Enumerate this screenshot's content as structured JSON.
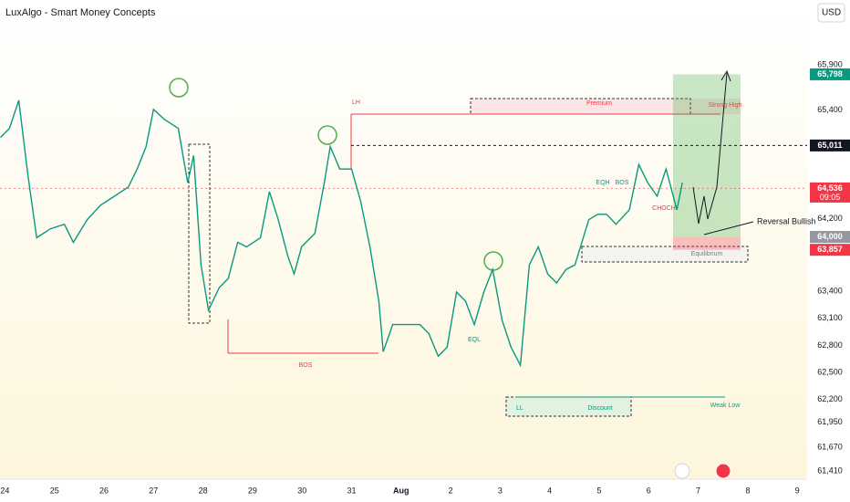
{
  "header": {
    "title": "LuxAlgo - Smart Money Concepts",
    "currency": "USD"
  },
  "chart_data": {
    "type": "line",
    "x": [
      23.91,
      24.09,
      24.28,
      24.46,
      24.64,
      24.92,
      25.2,
      25.38,
      25.66,
      25.93,
      26.21,
      26.49,
      26.67,
      26.85,
      27.0,
      27.22,
      27.5,
      27.69,
      27.81,
      27.96,
      28.11,
      28.33,
      28.51,
      28.7,
      28.88,
      29.16,
      29.34,
      29.52,
      29.71,
      29.84,
      29.99,
      30.26,
      30.45,
      30.57,
      30.76,
      31.0,
      31.18,
      31.37,
      31.55,
      31.64,
      31.83,
      32.1,
      32.38,
      32.56,
      32.75,
      32.93,
      33.12,
      33.3,
      33.48,
      33.67,
      33.85,
      34.04,
      34.22,
      34.41,
      34.59,
      34.77,
      34.96,
      35.14,
      35.33,
      35.51,
      35.79,
      35.97,
      36.15,
      36.34,
      36.61,
      36.8,
      36.98,
      37.17,
      37.35,
      37.57,
      37.68
    ],
    "values": [
      65100,
      65200,
      65510,
      64700,
      63990,
      64090,
      64140,
      63940,
      64190,
      64350,
      64450,
      64550,
      64750,
      65000,
      65410,
      65300,
      65200,
      64600,
      64900,
      63690,
      63190,
      63440,
      63540,
      63940,
      63890,
      63990,
      64500,
      64190,
      63790,
      63590,
      63890,
      64040,
      64600,
      65000,
      64750,
      64750,
      64400,
      63890,
      63290,
      62730,
      63030,
      63030,
      63030,
      62930,
      62680,
      62780,
      63390,
      63290,
      63030,
      63390,
      63640,
      63080,
      62780,
      62580,
      63690,
      63890,
      63590,
      63490,
      63640,
      63690,
      64190,
      64250,
      64250,
      64140,
      64300,
      64800,
      64600,
      64450,
      64750,
      64300,
      64600
    ],
    "color": "#089981",
    "xlim": [
      23.9,
      40.2
    ],
    "ylim": [
      61320,
      66620
    ],
    "xticks": [
      24,
      25,
      26,
      27,
      28,
      29,
      30,
      31,
      {
        "value": 32,
        "label": "Aug"
      },
      {
        "value": 33,
        "label": "2"
      },
      {
        "value": 34,
        "label": "3"
      },
      {
        "value": 35,
        "label": "4"
      },
      {
        "value": 36,
        "label": "5"
      },
      {
        "value": 37,
        "label": "6"
      },
      {
        "value": 38,
        "label": "7"
      },
      {
        "value": 39,
        "label": "8"
      },
      {
        "value": 40,
        "label": "9"
      }
    ],
    "yticks": [
      {
        "value": 65900,
        "label": "65,900"
      },
      {
        "value": 65400,
        "label": "65,400"
      },
      {
        "value": 64200,
        "label": "64,200"
      },
      {
        "value": 63400,
        "label": "63,400"
      },
      {
        "value": 63100,
        "label": "63,100"
      },
      {
        "value": 62800,
        "label": "62,800"
      },
      {
        "value": 62500,
        "label": "62,500"
      },
      {
        "value": 62200,
        "label": "62,200"
      },
      {
        "value": 61950,
        "label": "61,950"
      },
      {
        "value": 61670,
        "label": "61,670"
      },
      {
        "value": 61410,
        "label": "61,410"
      }
    ],
    "price_labels": [
      {
        "value": 65798,
        "label": "65,798",
        "color": "#089981"
      },
      {
        "value": 65011,
        "label": "65,011",
        "color": "#131722"
      },
      {
        "value": 64536,
        "label": "64,536",
        "countdown": "09:05",
        "color": "#f23645"
      },
      {
        "value": 64000,
        "label": "64,000",
        "color": "#9598a1"
      },
      {
        "value": 63857,
        "label": "63,857",
        "color": "#f23645"
      }
    ],
    "annotations": {
      "lh": "LH",
      "premium": "Premium",
      "strong_high": "Strong High",
      "bos": "BOS",
      "discount": "Discount",
      "ll": "LL",
      "weak_low": "Weak Low",
      "equilibrium": "Equilibrium",
      "eql": "EQL",
      "eqh": "EQH",
      "bos_small": "BOS",
      "choch": "CHOCH",
      "reversal": "Reversal Bullish"
    }
  }
}
